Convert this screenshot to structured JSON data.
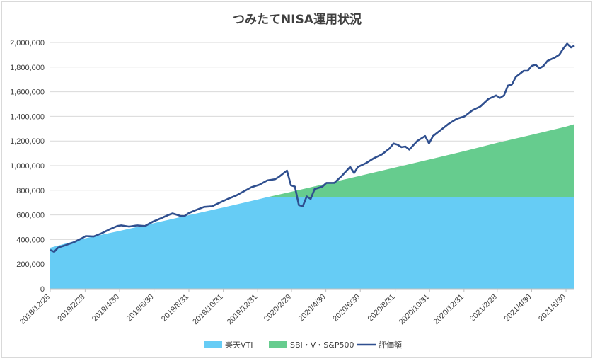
{
  "chart_data": {
    "type": "area",
    "title": "つみたてNISA運用状況",
    "xlabel": "",
    "ylabel": "",
    "ylim": [
      0,
      2000000
    ],
    "y_ticks": [
      "0",
      "200,000",
      "400,000",
      "600,000",
      "800,000",
      "1,000,000",
      "1,200,000",
      "1,400,000",
      "1,600,000",
      "1,800,000",
      "2,000,000"
    ],
    "x_range": [
      "2018-12-28",
      "2021-07-15"
    ],
    "x_ticks": [
      "2018/12/28",
      "2019/2/28",
      "2019/4/30",
      "2019/6/30",
      "2019/8/31",
      "2019/10/31",
      "2019/12/31",
      "2020/2/29",
      "2020/4/30",
      "2020/6/30",
      "2020/8/31",
      "2020/10/31",
      "2020/12/31",
      "2021/2/28",
      "2021/4/30",
      "2021/6/30"
    ],
    "x_tick_dates": [
      "2018-12-28",
      "2019-02-28",
      "2019-04-30",
      "2019-06-30",
      "2019-08-31",
      "2019-10-31",
      "2019-12-31",
      "2020-02-29",
      "2020-04-30",
      "2020-06-30",
      "2020-08-31",
      "2020-10-31",
      "2020-12-31",
      "2021-02-28",
      "2021-04-30",
      "2021-06-30"
    ],
    "grid": true,
    "legend_position": "bottom",
    "series": [
      {
        "name": "楽天VTI",
        "type": "area",
        "color": "#66ccf5",
        "points": [
          [
            "2018-12-28",
            333000
          ],
          [
            "2019-02-28",
            410000
          ],
          [
            "2019-04-30",
            470000
          ],
          [
            "2019-06-30",
            533000
          ],
          [
            "2019-08-31",
            598000
          ],
          [
            "2019-10-31",
            660000
          ],
          [
            "2019-12-31",
            725000
          ],
          [
            "2020-01-15",
            742000
          ],
          [
            "2020-07-15",
            742000
          ],
          [
            "2021-07-15",
            742000
          ]
        ]
      },
      {
        "name": "SBI・V・S&P500",
        "type": "area",
        "color": "#66cc8e",
        "points": [
          [
            "2020-01-15",
            742000
          ],
          [
            "2020-02-29",
            788000
          ],
          [
            "2020-04-30",
            853000
          ],
          [
            "2020-06-30",
            918000
          ],
          [
            "2020-08-31",
            985000
          ],
          [
            "2020-10-31",
            1050000
          ],
          [
            "2020-12-31",
            1117000
          ],
          [
            "2021-02-28",
            1185000
          ],
          [
            "2021-04-30",
            1250000
          ],
          [
            "2021-06-30",
            1317000
          ],
          [
            "2021-07-15",
            1337000
          ]
        ]
      },
      {
        "name": "評価額",
        "type": "line",
        "color": "#2f4f8f",
        "points": [
          [
            "2018-12-28",
            315000
          ],
          [
            "2019-01-04",
            300000
          ],
          [
            "2019-01-11",
            335000
          ],
          [
            "2019-01-25",
            355000
          ],
          [
            "2019-02-08",
            378000
          ],
          [
            "2019-02-22",
            410000
          ],
          [
            "2019-03-01",
            428000
          ],
          [
            "2019-03-15",
            425000
          ],
          [
            "2019-03-29",
            450000
          ],
          [
            "2019-04-12",
            482000
          ],
          [
            "2019-04-26",
            510000
          ],
          [
            "2019-05-03",
            515000
          ],
          [
            "2019-05-17",
            505000
          ],
          [
            "2019-05-31",
            515000
          ],
          [
            "2019-06-14",
            510000
          ],
          [
            "2019-06-28",
            545000
          ],
          [
            "2019-07-12",
            572000
          ],
          [
            "2019-07-26",
            600000
          ],
          [
            "2019-08-02",
            612000
          ],
          [
            "2019-08-16",
            592000
          ],
          [
            "2019-08-23",
            590000
          ],
          [
            "2019-08-31",
            615000
          ],
          [
            "2019-09-13",
            640000
          ],
          [
            "2019-09-27",
            665000
          ],
          [
            "2019-10-11",
            670000
          ],
          [
            "2019-10-25",
            700000
          ],
          [
            "2019-11-08",
            730000
          ],
          [
            "2019-11-22",
            755000
          ],
          [
            "2019-12-06",
            790000
          ],
          [
            "2019-12-20",
            825000
          ],
          [
            "2020-01-03",
            845000
          ],
          [
            "2020-01-17",
            880000
          ],
          [
            "2020-01-31",
            890000
          ],
          [
            "2020-02-07",
            910000
          ],
          [
            "2020-02-21",
            960000
          ],
          [
            "2020-02-28",
            840000
          ],
          [
            "2020-03-06",
            830000
          ],
          [
            "2020-03-13",
            680000
          ],
          [
            "2020-03-20",
            670000
          ],
          [
            "2020-03-27",
            750000
          ],
          [
            "2020-04-03",
            730000
          ],
          [
            "2020-04-10",
            810000
          ],
          [
            "2020-04-24",
            830000
          ],
          [
            "2020-05-01",
            860000
          ],
          [
            "2020-05-15",
            860000
          ],
          [
            "2020-05-29",
            920000
          ],
          [
            "2020-06-12",
            990000
          ],
          [
            "2020-06-19",
            940000
          ],
          [
            "2020-06-26",
            990000
          ],
          [
            "2020-07-10",
            1020000
          ],
          [
            "2020-07-24",
            1060000
          ],
          [
            "2020-08-07",
            1090000
          ],
          [
            "2020-08-21",
            1140000
          ],
          [
            "2020-08-28",
            1180000
          ],
          [
            "2020-09-04",
            1170000
          ],
          [
            "2020-09-11",
            1150000
          ],
          [
            "2020-09-18",
            1155000
          ],
          [
            "2020-09-25",
            1130000
          ],
          [
            "2020-10-09",
            1200000
          ],
          [
            "2020-10-23",
            1240000
          ],
          [
            "2020-10-30",
            1180000
          ],
          [
            "2020-11-06",
            1240000
          ],
          [
            "2020-11-20",
            1290000
          ],
          [
            "2020-12-04",
            1340000
          ],
          [
            "2020-12-18",
            1380000
          ],
          [
            "2021-01-01",
            1400000
          ],
          [
            "2021-01-15",
            1450000
          ],
          [
            "2021-01-29",
            1480000
          ],
          [
            "2021-02-12",
            1540000
          ],
          [
            "2021-02-26",
            1570000
          ],
          [
            "2021-03-05",
            1550000
          ],
          [
            "2021-03-12",
            1570000
          ],
          [
            "2021-03-19",
            1650000
          ],
          [
            "2021-03-26",
            1660000
          ],
          [
            "2021-04-02",
            1720000
          ],
          [
            "2021-04-16",
            1770000
          ],
          [
            "2021-04-23",
            1770000
          ],
          [
            "2021-04-30",
            1810000
          ],
          [
            "2021-05-07",
            1820000
          ],
          [
            "2021-05-14",
            1790000
          ],
          [
            "2021-05-21",
            1810000
          ],
          [
            "2021-05-28",
            1850000
          ],
          [
            "2021-06-11",
            1880000
          ],
          [
            "2021-06-18",
            1900000
          ],
          [
            "2021-06-25",
            1950000
          ],
          [
            "2021-07-02",
            1990000
          ],
          [
            "2021-07-09",
            1960000
          ],
          [
            "2021-07-15",
            1975000
          ]
        ]
      }
    ]
  }
}
